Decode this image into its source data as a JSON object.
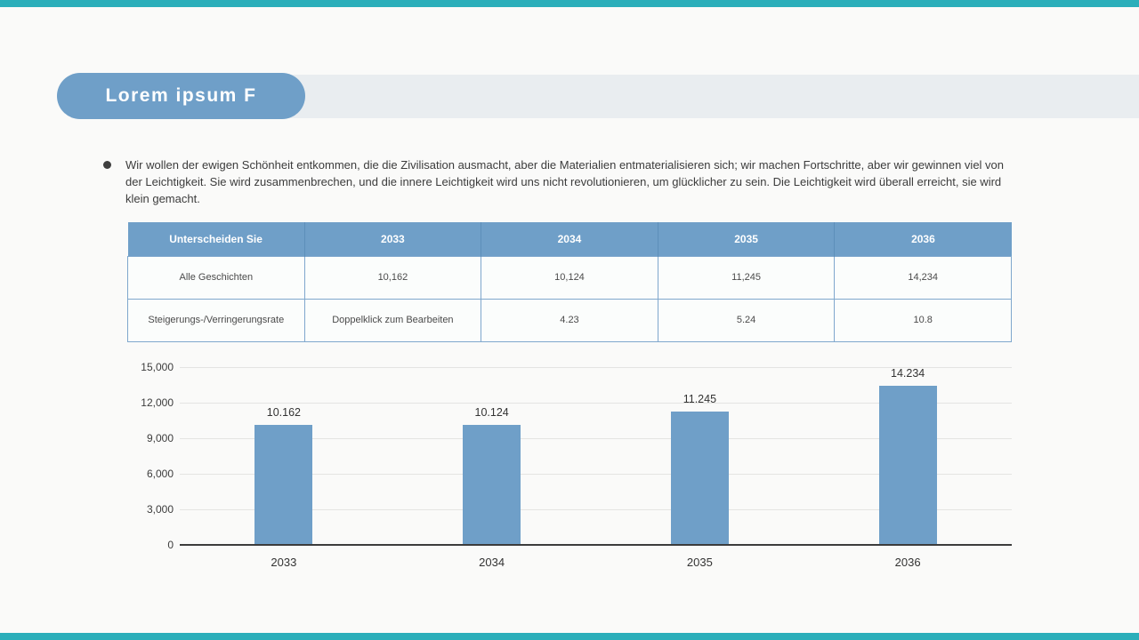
{
  "colors": {
    "accent_teal": "#2baeba",
    "accent_blue": "#6f9fc8",
    "banner_gray": "#e9edf0",
    "background": "#fafaf9"
  },
  "header": {
    "title": "Lorem ipsum F"
  },
  "bullet": {
    "text": "Wir wollen der ewigen Schönheit entkommen, die die Zivilisation ausmacht, aber die Materialien entmaterialisieren sich; wir machen Fortschritte, aber wir gewinnen viel von der Leichtigkeit. Sie wird zusammenbrechen, und die innere Leichtigkeit wird uns nicht revolutionieren, um glücklicher zu sein. Die Leichtigkeit wird überall erreicht, sie wird klein gemacht."
  },
  "table": {
    "headers": [
      "Unterscheiden Sie",
      "2033",
      "2034",
      "2035",
      "2036"
    ],
    "rows": [
      [
        "Alle Geschichten",
        "10,162",
        "10,124",
        "11,245",
        "14,234"
      ],
      [
        "Steigerungs-/Verringerungsrate",
        "Doppelklick zum Bearbeiten",
        "4.23",
        "5.24",
        "10.8"
      ]
    ]
  },
  "chart_data": {
    "type": "bar",
    "title": "",
    "xlabel": "",
    "ylabel": "",
    "categories": [
      "2033",
      "2034",
      "2035",
      "2036"
    ],
    "values": [
      10162,
      10124,
      11245,
      14234
    ],
    "labels": [
      "10.162",
      "10.124",
      "11.245",
      "14.234"
    ],
    "ylim": [
      0,
      15000
    ],
    "ytick_step": 3000,
    "yticks": [
      "15,000",
      "12,000",
      "9,000",
      "6,000",
      "3,000",
      "0"
    ],
    "grid": true,
    "legend": false,
    "bar_color": "#6f9fc8"
  }
}
